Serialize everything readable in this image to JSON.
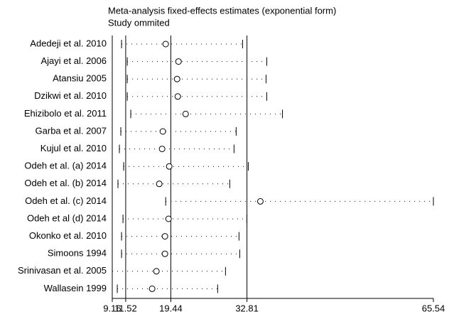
{
  "chart_data": {
    "type": "influence",
    "title": "Meta-analysis fixed-effects estimates (exponential form)",
    "subtitle": "Study ommited",
    "categories": [
      "Adedeji et al. 2010",
      "Ajayi et al. 2006",
      "Atansiu 2005",
      "Dzikwi et al. 2010",
      "Ehizibolo et al. 2011",
      "Garba et al. 2007",
      "Kujul et al. 2010",
      "Odeh et al. (a) 2014",
      "Odeh et al. (b) 2014",
      "Odeh et al. (c) 2014",
      "Odeh et al (d) 2014",
      "Okonko et al. 2010",
      "Simoons 1994",
      "Srinivasan et al. 2005",
      "Wallasein 1999"
    ],
    "values": [
      18.54,
      20.79,
      20.54,
      20.66,
      22.04,
      18.04,
      17.91,
      19.16,
      17.41,
      35.16,
      19.04,
      18.41,
      18.41,
      16.91,
      16.16
    ],
    "lower": [
      10.79,
      11.79,
      11.79,
      11.79,
      12.41,
      10.66,
      10.41,
      11.16,
      10.16,
      18.54,
      11.04,
      10.79,
      10.79,
      9.16,
      10.04
    ],
    "upper": [
      32.04,
      36.29,
      36.16,
      36.29,
      39.04,
      30.91,
      30.54,
      33.04,
      29.79,
      65.54,
      32.79,
      31.41,
      31.54,
      29.04,
      27.66
    ],
    "xlim": [
      9.16,
      65.54
    ],
    "xticks": [
      9.16,
      11.52,
      19.44,
      32.81,
      65.54
    ],
    "reference_lines": [
      9.16,
      11.52,
      19.44,
      32.81
    ],
    "color": "#000000"
  }
}
